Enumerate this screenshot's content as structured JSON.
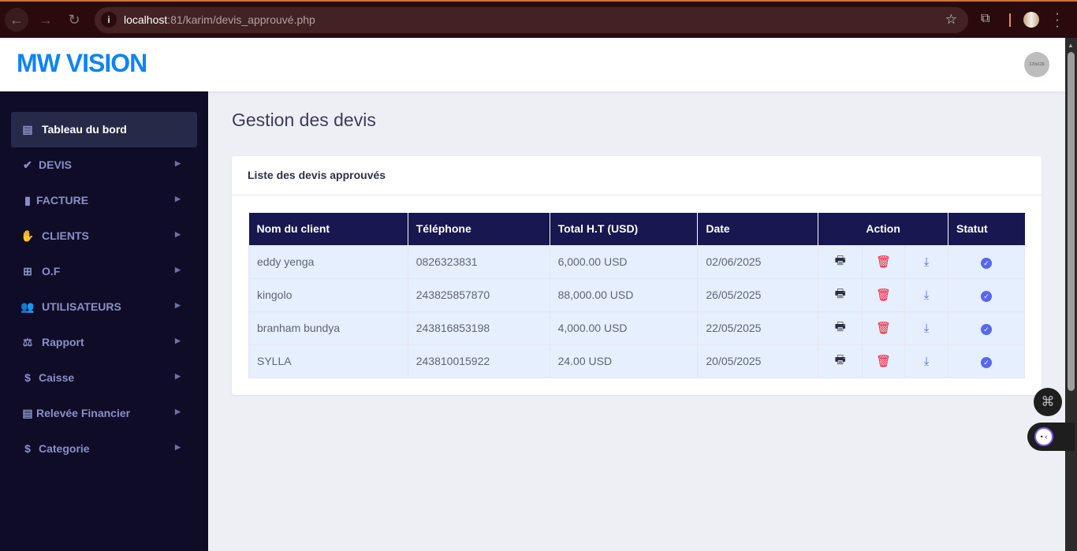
{
  "browser": {
    "url_host": "localhost",
    "url_rest": ":81/karim/devis_approuvé.php"
  },
  "header": {
    "logo": "MW VISION",
    "avatar_text": "120x120"
  },
  "sidebar": {
    "items": [
      {
        "label": "Tableau du bord",
        "icon": "warehouse-icon",
        "active": true
      },
      {
        "label": "DEVIS",
        "icon": "check-icon"
      },
      {
        "label": "FACTURE",
        "icon": "file-icon"
      },
      {
        "label": "CLIENTS",
        "icon": "handshake-icon"
      },
      {
        "label": "O.F",
        "icon": "table-icon"
      },
      {
        "label": "UTILISATEURS",
        "icon": "users-icon"
      },
      {
        "label": "Rapport",
        "icon": "balance-scale-icon"
      },
      {
        "label": "Caisse",
        "icon": "money-icon"
      },
      {
        "label": "Relevée Financier",
        "icon": "file-text-icon"
      },
      {
        "label": "Categorie",
        "icon": "money-icon"
      }
    ]
  },
  "main": {
    "title": "Gestion des devis",
    "card_title": "Liste des devis approuvés",
    "columns": [
      "Nom du client",
      "Téléphone",
      "Total H.T (USD)",
      "Date",
      "Action",
      "Statut"
    ],
    "rows": [
      {
        "client": "eddy yenga",
        "phone": "0826323831",
        "total": "6,000.00 USD",
        "date": "02/06/2025"
      },
      {
        "client": "kingolo",
        "phone": "243825857870",
        "total": "88,000.00 USD",
        "date": "26/05/2025"
      },
      {
        "client": "branham bundya",
        "phone": "243816853198",
        "total": "4,000.00 USD",
        "date": "22/05/2025"
      },
      {
        "client": "SYLLA",
        "phone": "243810015922",
        "total": "24.00 USD",
        "date": "20/05/2025"
      }
    ]
  },
  "colors": {
    "brand": "#0c84f5",
    "sidebar": "#0e0c27",
    "table_header": "#18174f",
    "delete": "#f2132a",
    "accent": "#5867ee"
  }
}
